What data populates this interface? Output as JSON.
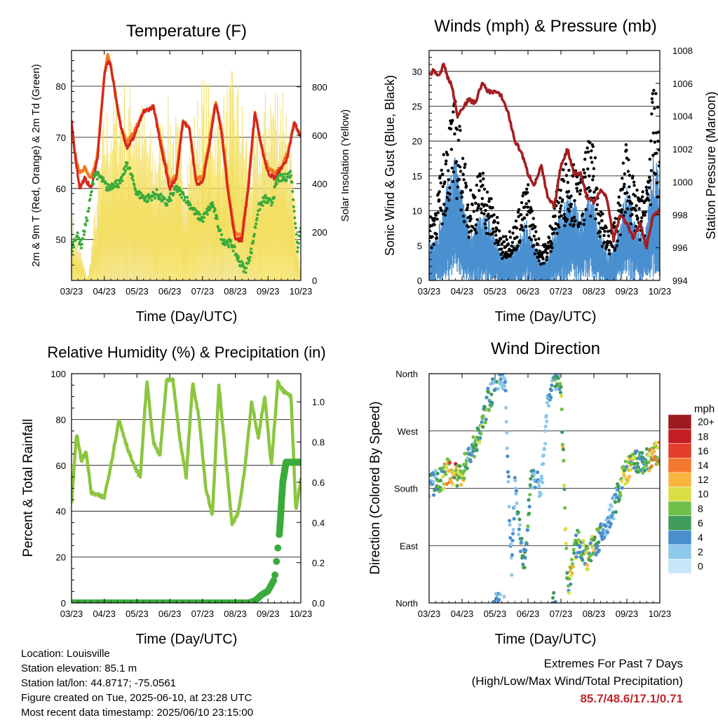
{
  "temperature": {
    "title": "Temperature (F)",
    "xlabel": "Time (Day/UTC)",
    "ylabel_left": "2m & 9m T (Red, Orange) & 2m Td (Green)",
    "ylabel_right": "Solar Insolation (Yellow)"
  },
  "winds": {
    "title": "Winds (mph) & Pressure (mb)",
    "xlabel": "Time (Day/UTC)",
    "ylabel_left": "Sonic Wind & Gust (Blue, Black)",
    "ylabel_right": "Station Pressure (Maroon)"
  },
  "humidity": {
    "title": "Relative Humidity (%) & Precipitation (in)",
    "xlabel": "Time (Day/UTC)",
    "ylabel_left": "Percent & Total Rainfall"
  },
  "direction": {
    "title": "Wind Direction",
    "xlabel": "Time (Day/UTC)",
    "ylabel_left": "Direction (Colored By Speed)",
    "legend_unit": "mph"
  },
  "info": {
    "location": "Location: Louisville",
    "elevation": "Station elevation: 85.1 m",
    "latlon": "Station lat/lon: 44.8717; -75.0561",
    "created": "Figure created on Tue, 2025-06-10, at 23:28 UTC",
    "recent": "Most recent data timestamp: 2025/06/10 23:15:00"
  },
  "extremes": {
    "line1": "Extremes For Past 7 Days",
    "line2": "(High/Low/Max Wind/Total Precipitation)",
    "values": "85.7/48.6/17.1/0.71"
  },
  "chart_data": [
    {
      "type": "line",
      "title": "Temperature (F)",
      "xlabel": "Time (Day/UTC)",
      "ylabel": "2m & 9m T (Red, Orange) & 2m Td (Green)",
      "y2label": "Solar Insolation (Yellow)",
      "x_ticks": [
        "03/23",
        "04/23",
        "05/23",
        "06/23",
        "07/23",
        "08/23",
        "09/23",
        "10/23"
      ],
      "ylim": [
        42,
        87
      ],
      "y_ticks": [
        50,
        60,
        70,
        80
      ],
      "y2lim": [
        0,
        950
      ],
      "y2_ticks": [
        0,
        200,
        400,
        600,
        800
      ],
      "grid": true,
      "series": [
        {
          "name": "2m T",
          "color": "#d7261e",
          "axis": "left",
          "x": [
            0,
            0.1,
            0.25,
            0.4,
            0.6,
            0.8,
            1.0,
            1.1,
            1.2,
            1.3,
            1.5,
            1.7,
            1.9,
            2.2,
            2.5,
            2.8,
            3.0,
            3.2,
            3.4,
            3.6,
            3.8,
            4.0,
            4.2,
            4.4,
            4.6,
            4.8,
            5.0,
            5.2,
            5.4,
            5.5,
            5.6,
            5.8,
            6.0,
            6.2,
            6.4,
            6.6,
            6.8,
            7.0
          ],
          "values": [
            73,
            67,
            60,
            62,
            60,
            66,
            82,
            85,
            84,
            80,
            72,
            68,
            70,
            75,
            76,
            66,
            60,
            62,
            73,
            72,
            61,
            61,
            68,
            77,
            70,
            58,
            50,
            50,
            60,
            68,
            75,
            68,
            63,
            62,
            64,
            66,
            73,
            70
          ]
        },
        {
          "name": "9m T",
          "color": "#f07a20",
          "axis": "left",
          "x": [
            0,
            0.1,
            0.25,
            0.4,
            0.6,
            0.8,
            1.0,
            1.1,
            1.2,
            1.3,
            1.5,
            1.7,
            1.9,
            2.2,
            2.5,
            2.8,
            3.0,
            3.2,
            3.4,
            3.6,
            3.8,
            4.0,
            4.2,
            4.4,
            4.6,
            4.8,
            5.0,
            5.2,
            5.4,
            5.5,
            5.6,
            5.8,
            6.0,
            6.2,
            6.4,
            6.6,
            6.8,
            7.0
          ],
          "values": [
            73,
            67,
            63,
            64,
            62,
            67,
            82,
            86,
            84,
            80,
            72,
            69,
            71,
            75,
            76,
            67,
            61,
            63,
            73,
            72,
            62,
            62,
            69,
            77,
            71,
            59,
            51,
            51,
            61,
            68,
            75,
            68,
            64,
            63,
            64,
            67,
            73,
            70
          ]
        },
        {
          "name": "2m Td",
          "color": "#3aab3a",
          "axis": "left",
          "x": [
            0,
            0.15,
            0.3,
            0.5,
            0.7,
            0.9,
            1.1,
            1.3,
            1.5,
            1.7,
            2.0,
            2.3,
            2.6,
            2.9,
            3.2,
            3.5,
            3.8,
            4.0,
            4.3,
            4.6,
            4.9,
            5.1,
            5.3,
            5.5,
            5.7,
            5.9,
            6.1,
            6.3,
            6.5,
            6.7,
            6.8,
            6.9,
            7.0
          ],
          "values": [
            48,
            51,
            49,
            55,
            63,
            62,
            60,
            61,
            61,
            65,
            59,
            58,
            59,
            57,
            60,
            58,
            55,
            54,
            57,
            50,
            49,
            46,
            44,
            48,
            56,
            58,
            57,
            62,
            62,
            63,
            56,
            48,
            53
          ]
        },
        {
          "name": "Solar Insolation",
          "color": "#f3df64",
          "axis": "right",
          "x": [
            0,
            0.5,
            1,
            1.5,
            2,
            2.5,
            3,
            3.5,
            4,
            4.5,
            5,
            5.5,
            6,
            6.5,
            7
          ],
          "values": [
            300,
            0,
            720,
            860,
            820,
            600,
            780,
            560,
            870,
            740,
            910,
            560,
            840,
            900,
            20
          ]
        }
      ]
    },
    {
      "type": "scatter",
      "title": "Winds (mph) & Pressure (mb)",
      "xlabel": "Time (Day/UTC)",
      "ylabel": "Sonic Wind & Gust (Blue, Black)",
      "y2label": "Station Pressure (Maroon)",
      "x_ticks": [
        "03/23",
        "04/23",
        "05/23",
        "06/23",
        "07/23",
        "08/23",
        "09/23",
        "10/23"
      ],
      "ylim": [
        0,
        33
      ],
      "y_ticks": [
        0,
        5,
        10,
        15,
        20,
        25,
        30
      ],
      "y2lim": [
        994,
        1008
      ],
      "y2_ticks": [
        994,
        996,
        998,
        1000,
        1002,
        1004,
        1006,
        1008
      ],
      "grid": true,
      "series": [
        {
          "name": "Gust",
          "color": "#000000",
          "x": [
            0,
            0.2,
            0.4,
            0.6,
            0.8,
            1.0,
            1.2,
            1.4,
            1.6,
            1.8,
            2.0,
            2.2,
            2.4,
            2.6,
            2.8,
            3.0,
            3.2,
            3.4,
            3.6,
            3.8,
            4.0,
            4.2,
            4.4,
            4.6,
            4.8,
            5.0,
            5.2,
            5.4,
            5.6,
            5.8,
            6.0,
            6.2,
            6.4,
            6.6,
            6.8,
            7.0
          ],
          "values": [
            7,
            10,
            14,
            20,
            22,
            17,
            11,
            12,
            14,
            11,
            9,
            5,
            6,
            7,
            10,
            12,
            7,
            4,
            5,
            10,
            13,
            15,
            14,
            12,
            17,
            16,
            10,
            6,
            7,
            11,
            18,
            12,
            10,
            12,
            24,
            20
          ]
        },
        {
          "name": "Wind",
          "color": "#4a90d0",
          "x": [
            0,
            0.2,
            0.4,
            0.6,
            0.8,
            1.0,
            1.2,
            1.4,
            1.6,
            1.8,
            2.0,
            2.2,
            2.4,
            2.6,
            2.8,
            3.0,
            3.2,
            3.4,
            3.6,
            3.8,
            4.0,
            4.2,
            4.4,
            4.6,
            4.8,
            5.0,
            5.2,
            5.4,
            5.6,
            5.8,
            6.0,
            6.2,
            6.4,
            6.6,
            6.8,
            7.0
          ],
          "values": [
            4,
            5,
            8,
            12,
            14,
            10,
            6,
            6,
            8,
            7,
            5,
            3,
            3,
            4,
            6,
            7,
            4,
            2,
            3,
            6,
            8,
            10,
            9,
            7,
            10,
            9,
            6,
            3,
            4,
            7,
            11,
            8,
            6,
            7,
            14,
            12
          ]
        },
        {
          "name": "Station Pressure",
          "color": "#a31e22",
          "axis": "right",
          "x": [
            0,
            0.15,
            0.3,
            0.45,
            0.55,
            0.7,
            0.85,
            1.0,
            1.2,
            1.4,
            1.6,
            1.8,
            2.0,
            2.2,
            2.4,
            2.6,
            2.8,
            3.0,
            3.2,
            3.4,
            3.6,
            3.8,
            4.0,
            4.2,
            4.4,
            4.6,
            4.8,
            5.0,
            5.2,
            5.4,
            5.6,
            5.8,
            6.0,
            6.2,
            6.4,
            6.6,
            6.8,
            7.0
          ],
          "values": [
            1006.5,
            1006.8,
            1006.4,
            1007.2,
            1006.4,
            1005.8,
            1004.0,
            1004.5,
            1005.0,
            1004.8,
            1006.0,
            1005.5,
            1005.5,
            1005.2,
            1004.2,
            1002.5,
            1001.8,
            1000.5,
            999.8,
            1001.0,
            999.0,
            998.5,
            1001.0,
            1002.0,
            1000.5,
            1000.5,
            999.0,
            998.8,
            999.5,
            999.0,
            996.5,
            998.0,
            997.5,
            996.5,
            997.5,
            996.0,
            998.0,
            998.3
          ]
        }
      ]
    },
    {
      "type": "line",
      "title": "Relative Humidity (%) & Precipitation (in)",
      "xlabel": "Time (Day/UTC)",
      "ylabel": "Percent & Total Rainfall",
      "x_ticks": [
        "03/23",
        "04/23",
        "05/23",
        "06/23",
        "07/23",
        "08/23",
        "09/23",
        "10/23"
      ],
      "ylim": [
        0,
        100
      ],
      "y_ticks": [
        0,
        20,
        40,
        60,
        80,
        100
      ],
      "y2lim": [
        0.0,
        1.14
      ],
      "y2_ticks": [
        0.0,
        0.2,
        0.4,
        0.6,
        0.8,
        1.0
      ],
      "grid": true,
      "series": [
        {
          "name": "Relative Humidity",
          "color": "#8cc63f",
          "axis": "left",
          "x": [
            0,
            0.15,
            0.3,
            0.45,
            0.6,
            0.8,
            1.0,
            1.2,
            1.45,
            1.7,
            1.9,
            2.1,
            2.3,
            2.5,
            2.7,
            2.9,
            3.1,
            3.3,
            3.5,
            3.7,
            3.9,
            4.1,
            4.3,
            4.5,
            4.7,
            4.9,
            5.1,
            5.3,
            5.5,
            5.7,
            5.9,
            6.1,
            6.3,
            6.5,
            6.7,
            6.85,
            7.0
          ],
          "values": [
            43,
            74,
            62,
            66,
            48,
            47,
            46,
            60,
            80,
            68,
            60,
            55,
            97,
            70,
            64,
            97,
            97,
            72,
            55,
            96,
            80,
            50,
            38,
            95,
            65,
            34,
            40,
            60,
            88,
            72,
            90,
            60,
            96,
            92,
            90,
            40,
            54
          ]
        },
        {
          "name": "Total Rainfall",
          "color": "#3aab3a",
          "axis": "right",
          "x": [
            0,
            1,
            2,
            3,
            4,
            5,
            5.4,
            5.6,
            5.8,
            6.0,
            6.2,
            6.35,
            6.45,
            6.55,
            6.65,
            7.0
          ],
          "values": [
            0,
            0,
            0,
            0,
            0,
            0,
            0,
            0.01,
            0.04,
            0.06,
            0.12,
            0.35,
            0.6,
            0.7,
            0.7,
            0.7
          ]
        }
      ]
    },
    {
      "type": "scatter",
      "title": "Wind Direction",
      "xlabel": "Time (Day/UTC)",
      "ylabel": "Direction (Colored By Speed)",
      "x_ticks": [
        "03/23",
        "04/23",
        "05/23",
        "06/23",
        "07/23",
        "08/23",
        "09/23",
        "10/23"
      ],
      "y_ticks": [
        "North",
        "East",
        "South",
        "West",
        "North"
      ],
      "ylim": [
        0,
        360
      ],
      "grid": true,
      "colorbar": {
        "unit": "mph",
        "labels": [
          "0",
          "2",
          "4",
          "6",
          "8",
          "10",
          "12",
          "14",
          "16",
          "18",
          "20+"
        ],
        "colors": [
          "#c7e6f7",
          "#8ec8ea",
          "#4a8fcc",
          "#3f9c5a",
          "#6fbf4a",
          "#d8df45",
          "#f7b53f",
          "#f4772e",
          "#e33e2a",
          "#c31f23",
          "#9c1b1e"
        ]
      },
      "series": [
        {
          "name": "Wind Direction",
          "x": [
            0,
            0.3,
            0.6,
            0.9,
            1.2,
            1.5,
            1.8,
            1.9,
            2.0,
            2.3,
            2.5,
            2.6,
            2.8,
            2.9,
            3.1,
            3.4,
            3.6,
            3.8,
            4.0,
            4.2,
            4.5,
            4.8,
            5.0,
            5.3,
            5.6,
            5.9,
            6.2,
            6.5,
            6.8,
            7.0
          ],
          "values": [
            185,
            190,
            210,
            195,
            230,
            260,
            320,
            330,
            355,
            355,
            50,
            180,
            90,
            60,
            200,
            180,
            320,
            360,
            340,
            20,
            100,
            70,
            90,
            110,
            150,
            200,
            220,
            220,
            230,
            235
          ]
        }
      ]
    }
  ]
}
